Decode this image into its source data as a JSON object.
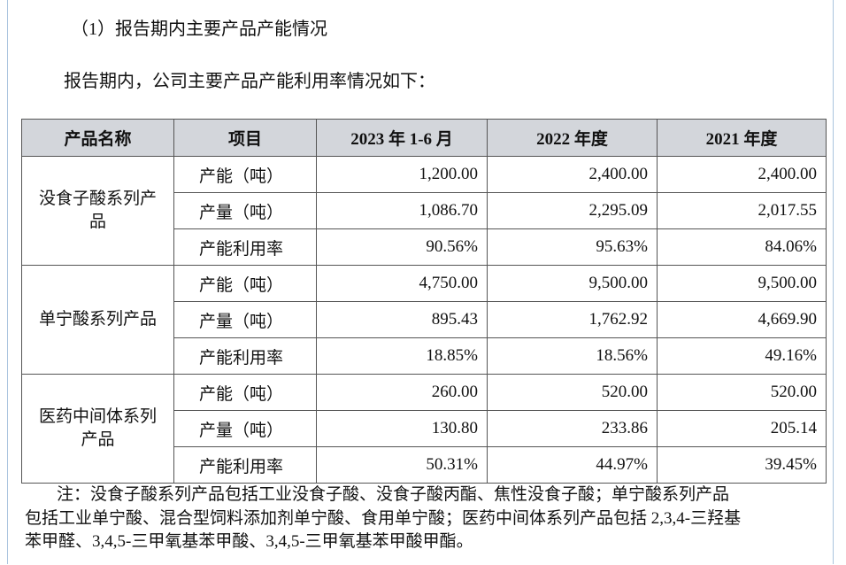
{
  "heading": "（1）报告期内主要产品产能情况",
  "intro": "报告期内，公司主要产品产能利用率情况如下：",
  "table": {
    "header": [
      "产品名称",
      "项目",
      "2023 年 1-6 月",
      "2022 年度",
      "2021 年度"
    ],
    "groups": [
      {
        "name": "没食子酸系列产品",
        "rows": [
          {
            "item": "产能（吨）",
            "values": [
              "1,200.00",
              "2,400.00",
              "2,400.00"
            ]
          },
          {
            "item": "产量（吨）",
            "values": [
              "1,086.70",
              "2,295.09",
              "2,017.55"
            ]
          },
          {
            "item": "产能利用率",
            "values": [
              "90.56%",
              "95.63%",
              "84.06%"
            ]
          }
        ]
      },
      {
        "name": "单宁酸系列产品",
        "rows": [
          {
            "item": "产能（吨）",
            "values": [
              "4,750.00",
              "9,500.00",
              "9,500.00"
            ]
          },
          {
            "item": "产量（吨）",
            "values": [
              "895.43",
              "1,762.92",
              "4,669.90"
            ]
          },
          {
            "item": "产能利用率",
            "values": [
              "18.85%",
              "18.56%",
              "49.16%"
            ]
          }
        ]
      },
      {
        "name": "医药中间体系列产品",
        "rows": [
          {
            "item": "产能（吨）",
            "values": [
              "260.00",
              "520.00",
              "520.00"
            ]
          },
          {
            "item": "产量（吨）",
            "values": [
              "130.80",
              "233.86",
              "205.14"
            ]
          },
          {
            "item": "产能利用率",
            "values": [
              "50.31%",
              "44.97%",
              "39.45%"
            ]
          }
        ]
      }
    ]
  },
  "note": [
    "注：没食子酸系列产品包括工业没食子酸、没食子酸丙酯、焦性没食子酸；单宁酸系列产品",
    "包括工业单宁酸、混合型饲料添加剂单宁酸、食用单宁酸；医药中间体系列产品包括 2,3,4-三羟基",
    "苯甲醛、3,4,5-三甲氧基苯甲酸、3,4,5-三甲氧基苯甲酸甲酯。"
  ]
}
